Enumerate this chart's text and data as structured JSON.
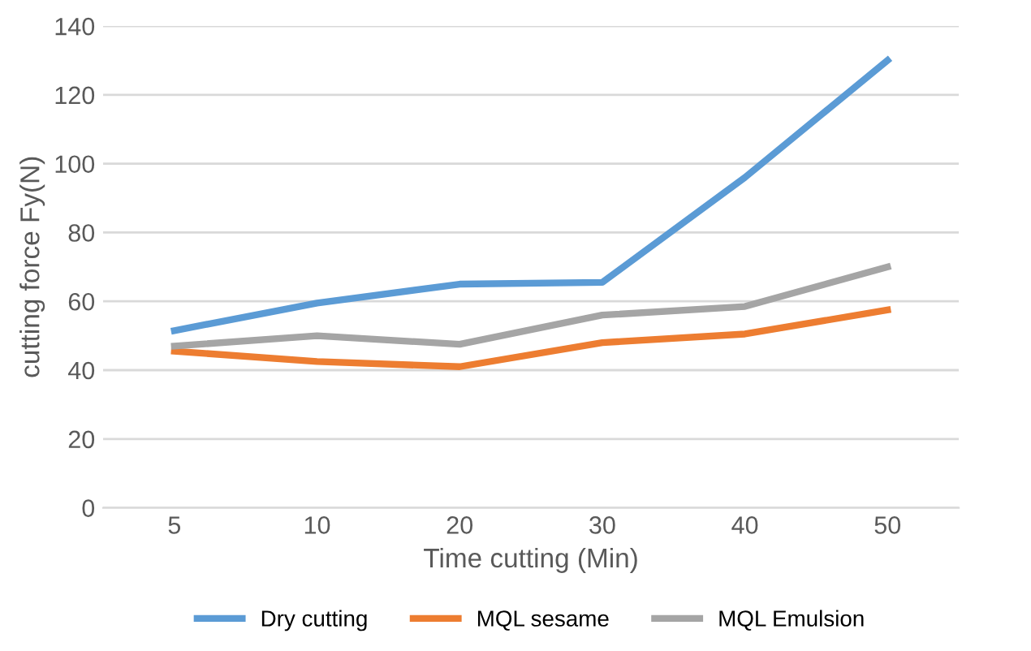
{
  "chart_data": {
    "type": "line",
    "xlabel": "Time cutting (Min)",
    "ylabel": "cutting force Fy(N)",
    "categories": [
      "5",
      "10",
      "20",
      "30",
      "40",
      "50"
    ],
    "series": [
      {
        "name": "Dry cutting",
        "color": "#5b9bd5",
        "values": [
          51.5,
          59.5,
          65,
          65.5,
          96,
          130
        ]
      },
      {
        "name": "MQL sesame",
        "color": "#ed7d31",
        "values": [
          45.5,
          42.5,
          41,
          48,
          50.5,
          57.5
        ]
      },
      {
        "name": "MQL Emulsion",
        "color": "#a5a5a5",
        "values": [
          47,
          50,
          47.5,
          56,
          58.5,
          70
        ]
      }
    ],
    "ylim": [
      0,
      140
    ],
    "yticks": [
      0,
      20,
      40,
      60,
      80,
      100,
      120,
      140
    ],
    "grid": "y",
    "legend": "bottom",
    "marker": "none",
    "line_style": "solid"
  }
}
